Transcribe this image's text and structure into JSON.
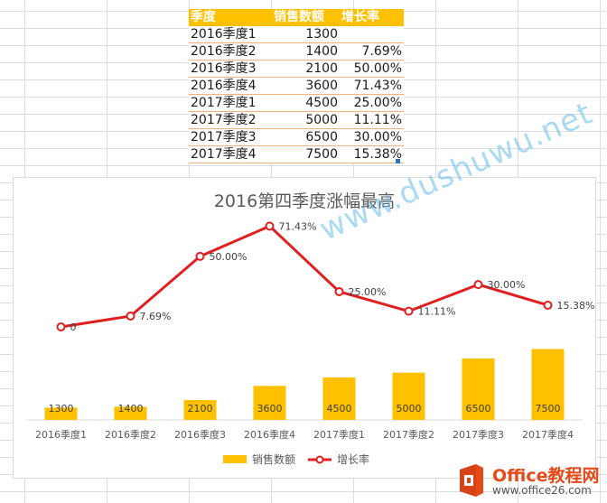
{
  "sheet": {
    "headers": [
      "季度",
      "销售数额",
      "增长率"
    ],
    "rows": [
      [
        "2016季度1",
        "1300",
        ""
      ],
      [
        "2016季度2",
        "1400",
        "7.69%"
      ],
      [
        "2016季度3",
        "2100",
        "50.00%"
      ],
      [
        "2016季度4",
        "3600",
        "71.43%"
      ],
      [
        "2017季度1",
        "4500",
        "25.00%"
      ],
      [
        "2017季度2",
        "5000",
        "11.11%"
      ],
      [
        "2017季度3",
        "6500",
        "30.00%"
      ],
      [
        "2017季度4",
        "7500",
        "15.38%"
      ]
    ]
  },
  "chart_data": {
    "type": "bar",
    "title": "2016第四季度涨幅最高",
    "categories": [
      "2016季度1",
      "2016季度2",
      "2016季度3",
      "2016季度4",
      "2017季度1",
      "2017季度2",
      "2017季度3",
      "2017季度4"
    ],
    "series": [
      {
        "name": "销售数额",
        "type": "bar",
        "values": [
          1300,
          1400,
          2100,
          3600,
          4500,
          5000,
          6500,
          7500
        ],
        "labels": [
          "1300",
          "1400",
          "2100",
          "3600",
          "4500",
          "5000",
          "6500",
          "7500"
        ],
        "color": "#ffc000"
      },
      {
        "name": "增长率",
        "type": "line",
        "values": [
          0,
          7.69,
          50.0,
          71.43,
          25.0,
          11.11,
          30.0,
          15.38
        ],
        "labels": [
          "0",
          "7.69%",
          "50.00%",
          "71.43%",
          "25.00%",
          "11.11%",
          "30.00%",
          "15.38%"
        ],
        "color": "#e02020"
      }
    ],
    "legend_position": "bottom",
    "grid": false,
    "bar_ylim": [
      0,
      25000
    ],
    "line_ylim": [
      -80,
      80
    ]
  },
  "watermark": "www.dushuwu.net",
  "logo": {
    "brand": "Office教程网",
    "url": "www.office26.com",
    "icon": "office-logo-icon"
  }
}
